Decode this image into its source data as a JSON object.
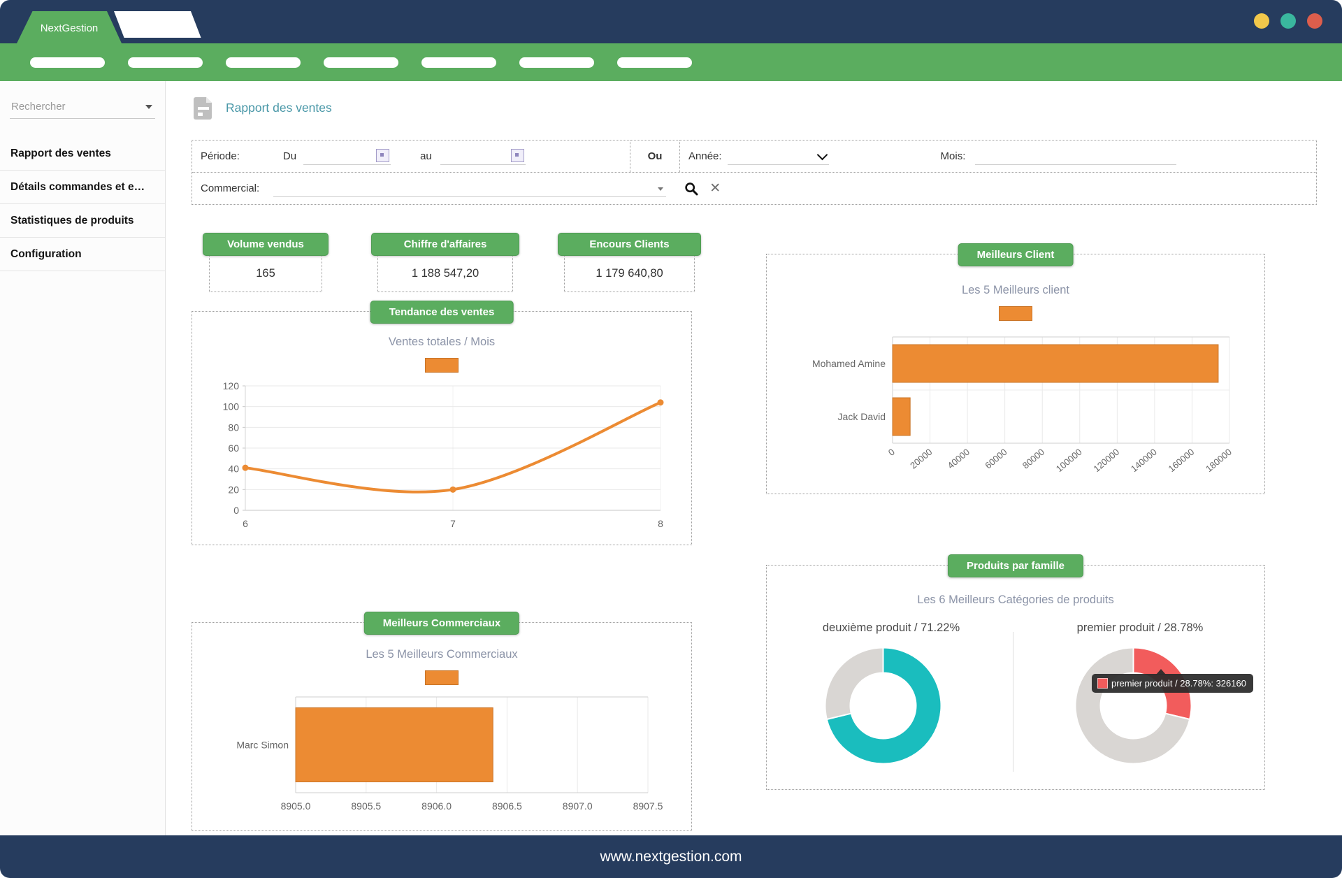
{
  "window": {
    "brand": "NextGestion",
    "footer_url": "www.nextgestion.com",
    "traffic_lights": [
      "#F2C84B",
      "#3AB79E",
      "#DD5E4C"
    ],
    "navy": "#263C5E",
    "green": "#5BAD5F"
  },
  "navbar": {
    "pill_count": 7
  },
  "sidebar": {
    "search_placeholder": "Rechercher",
    "items": [
      {
        "label": "Rapport des ventes"
      },
      {
        "label": "Détails commandes et e…"
      },
      {
        "label": "Statistiques de produits"
      },
      {
        "label": "Configuration"
      }
    ]
  },
  "page": {
    "title": "Rapport des ventes"
  },
  "filters": {
    "periode": "Période:",
    "du": "Du",
    "au": "au",
    "ou": "Ou",
    "annee": "Année:",
    "mois": "Mois:",
    "commercial": "Commercial:"
  },
  "stats": [
    {
      "label": "Volume vendus",
      "value": "165"
    },
    {
      "label": "Chiffre d'affaires",
      "value": "1 188 547,20"
    },
    {
      "label": "Encours Clients",
      "value": "1 179 640,80"
    }
  ],
  "chart_data": [
    {
      "type": "line",
      "panel_title": "Tendance des ventes",
      "title": "Ventes totales / Mois",
      "x": [
        6,
        7,
        8
      ],
      "values": [
        41,
        20,
        104
      ],
      "ylim": [
        0,
        120
      ],
      "yticks": [
        0,
        20,
        40,
        60,
        80,
        100,
        120
      ],
      "color": "#EC8B33",
      "grid": true,
      "legend": "swatch-only-top"
    },
    {
      "type": "bar",
      "orientation": "horizontal",
      "panel_title": "Meilleurs Client",
      "title": "Les 5 Meilleurs client",
      "categories": [
        "Mohamed Amine",
        "Jack David"
      ],
      "values": [
        174000,
        9400
      ],
      "xlim": [
        0,
        180000
      ],
      "xticks": [
        0,
        20000,
        40000,
        60000,
        80000,
        100000,
        120000,
        140000,
        160000,
        180000
      ],
      "xtick_labels": [
        "0",
        "20000",
        "40000",
        "60000",
        "80000",
        "100000",
        "120000",
        "140000",
        "160000",
        "180000"
      ],
      "color": "#EC8B33",
      "grid": true,
      "legend": "swatch-only-top"
    },
    {
      "type": "bar",
      "orientation": "horizontal",
      "panel_title": "Meilleurs Commerciaux",
      "title": "Les 5 Meilleurs Commerciaux",
      "categories": [
        "Marc Simon"
      ],
      "values": [
        8906.4
      ],
      "xlim": [
        8905.0,
        8907.5
      ],
      "xticks": [
        8905.0,
        8905.5,
        8906.0,
        8906.5,
        8907.0,
        8907.5
      ],
      "xtick_labels": [
        "8905.0",
        "8905.5",
        "8906.0",
        "8906.5",
        "8907.0",
        "8907.5"
      ],
      "color": "#EC8B33",
      "grid": true,
      "legend": "swatch-only-top"
    },
    {
      "type": "pie",
      "variant": "donut-pair",
      "panel_title": "Produits par famille",
      "title": "Les 6 Meilleurs Catégories de produits",
      "slices": [
        {
          "label": "deuxième produit / 71.22%",
          "pct": 71.22,
          "color": "#1ABDBE"
        },
        {
          "label": "premier produit / 28.78%",
          "pct": 28.78,
          "value": 326160,
          "color": "#F25C5C"
        }
      ],
      "rest_color": "#D9D6D3",
      "tooltip": {
        "text": "premier produit / 28.78%: 326160"
      }
    }
  ]
}
